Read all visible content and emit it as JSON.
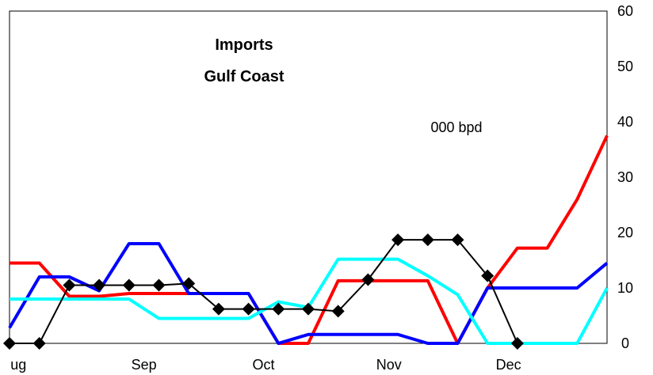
{
  "chart_data": {
    "type": "line",
    "title": "Imports",
    "subtitle": "Gulf Coast",
    "unit_label": "000 bpd",
    "ylim": [
      0,
      60
    ],
    "y_ticks": [
      0,
      10,
      20,
      30,
      40,
      50,
      60
    ],
    "y_axis_side": "right",
    "x_tick_labels": [
      "ug",
      "Sep",
      "Oct",
      "Nov",
      "Dec"
    ],
    "x_tick_positions": [
      0.3,
      4.5,
      8.5,
      12.7,
      16.7
    ],
    "xlim": [
      0,
      20
    ],
    "grid": false,
    "series": [
      {
        "color": "#ff0000",
        "marker": "none",
        "x": [
          0,
          1,
          2,
          3,
          4,
          5,
          6,
          7,
          8,
          9,
          10,
          11,
          12,
          13,
          14,
          15,
          16,
          17,
          18,
          19,
          20
        ],
        "y": [
          14.5,
          14.5,
          8.5,
          8.5,
          9,
          9,
          9,
          9,
          9,
          0,
          0,
          11.3,
          11.3,
          11.3,
          11.3,
          0,
          10,
          17.2,
          17.2,
          26,
          37.5
        ]
      },
      {
        "color": "#0000ff",
        "marker": "none",
        "x": [
          0,
          1,
          2,
          3,
          4,
          5,
          6,
          7,
          8,
          9,
          10,
          11,
          12,
          13,
          14,
          15,
          16,
          17,
          18,
          19,
          20
        ],
        "y": [
          2.8,
          12,
          12,
          9.5,
          18,
          18,
          9,
          9,
          9,
          0,
          1.6,
          1.6,
          1.6,
          1.6,
          0,
          0,
          10,
          10,
          10,
          10,
          14.5
        ]
      },
      {
        "color": "#00ffff",
        "marker": "none",
        "x": [
          0,
          1,
          2,
          3,
          4,
          5,
          6,
          7,
          8,
          9,
          10,
          11,
          12,
          13,
          14,
          15,
          16,
          17,
          18,
          19,
          20
        ],
        "y": [
          8,
          8,
          8,
          8,
          8,
          4.5,
          4.5,
          4.5,
          4.5,
          7.5,
          6.5,
          15.2,
          15.2,
          15.2,
          12.2,
          8.8,
          0,
          0,
          0,
          0,
          10
        ]
      },
      {
        "color": "#000000",
        "marker": "diamond",
        "x": [
          0,
          1,
          2,
          3,
          4,
          5,
          6,
          7,
          8,
          9,
          10,
          11,
          12,
          13,
          14,
          15,
          16,
          17
        ],
        "y": [
          0,
          0,
          10.5,
          10.5,
          10.5,
          10.5,
          10.8,
          6.2,
          6.2,
          6.2,
          6.2,
          5.8,
          11.5,
          18.7,
          18.7,
          18.7,
          12.2,
          0
        ]
      }
    ]
  }
}
